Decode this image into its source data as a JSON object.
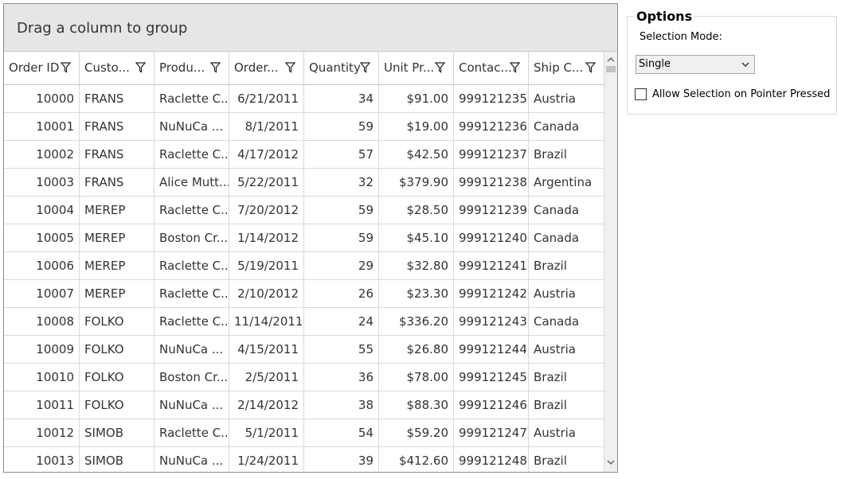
{
  "grid": {
    "group_panel_text": "Drag a column to group",
    "columns": [
      "Order ID",
      "Custo...",
      "Produ...",
      "Order...",
      "Quantity",
      "Unit Pr...",
      "Contac...",
      "Ship C..."
    ],
    "rows": [
      [
        "10000",
        "FRANS",
        "Raclette C...",
        "6/21/2011",
        "34",
        "$91.00",
        "999121235",
        "Austria"
      ],
      [
        "10001",
        "FRANS",
        "NuNuCa ...",
        "8/1/2011",
        "59",
        "$19.00",
        "999121236",
        "Canada"
      ],
      [
        "10002",
        "FRANS",
        "Raclette C...",
        "4/17/2012",
        "57",
        "$42.50",
        "999121237",
        "Brazil"
      ],
      [
        "10003",
        "FRANS",
        "Alice Mutt...",
        "5/22/2011",
        "32",
        "$379.90",
        "999121238",
        "Argentina"
      ],
      [
        "10004",
        "MEREP",
        "Raclette C...",
        "7/20/2012",
        "59",
        "$28.50",
        "999121239",
        "Canada"
      ],
      [
        "10005",
        "MEREP",
        "Boston Cr...",
        "1/14/2012",
        "59",
        "$45.10",
        "999121240",
        "Canada"
      ],
      [
        "10006",
        "MEREP",
        "Raclette C...",
        "5/19/2011",
        "29",
        "$32.80",
        "999121241",
        "Brazil"
      ],
      [
        "10007",
        "MEREP",
        "Raclette C...",
        "2/10/2012",
        "26",
        "$23.30",
        "999121242",
        "Austria"
      ],
      [
        "10008",
        "FOLKO",
        "Raclette C...",
        "11/14/2011",
        "24",
        "$336.20",
        "999121243",
        "Canada"
      ],
      [
        "10009",
        "FOLKO",
        "NuNuCa ...",
        "4/15/2011",
        "55",
        "$26.80",
        "999121244",
        "Austria"
      ],
      [
        "10010",
        "FOLKO",
        "Boston Cr...",
        "2/5/2011",
        "36",
        "$78.00",
        "999121245",
        "Brazil"
      ],
      [
        "10011",
        "FOLKO",
        "NuNuCa ...",
        "2/14/2012",
        "38",
        "$88.30",
        "999121246",
        "Brazil"
      ],
      [
        "10012",
        "SIMOB",
        "Raclette C...",
        "5/1/2011",
        "54",
        "$59.20",
        "999121247",
        "Austria"
      ],
      [
        "10013",
        "SIMOB",
        "NuNuCa ...",
        "1/24/2011",
        "39",
        "$412.60",
        "999121248",
        "Brazil"
      ]
    ]
  },
  "options": {
    "title": "Options",
    "selection_mode_label": "Selection Mode:",
    "selection_mode_value": "Single",
    "allow_selection_label": "Allow Selection on Pointer Pressed",
    "allow_selection_checked": false
  },
  "icons": {
    "filter": "filter-icon",
    "dropdown": "chevron-down-icon",
    "scroll_up": "chevron-up-icon",
    "scroll_down": "chevron-down-icon"
  },
  "colors": {
    "group_panel_bg": "#e6e6e6",
    "border": "#8c8c8c",
    "gridline": "#d9d9d9"
  }
}
